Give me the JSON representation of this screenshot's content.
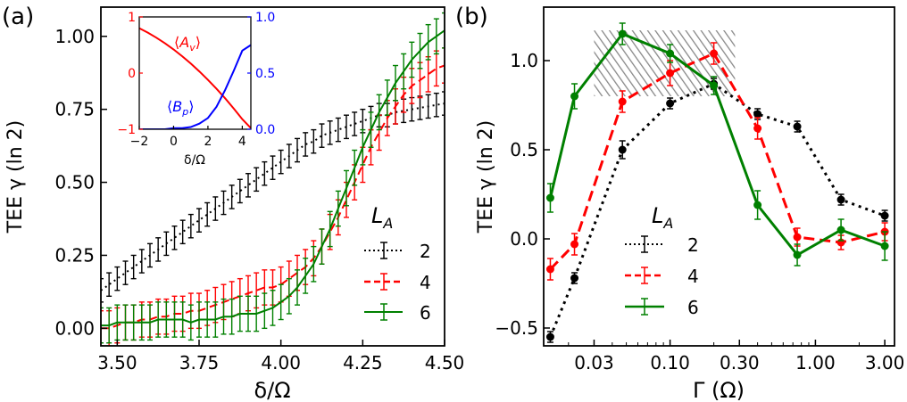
{
  "panels": [
    {
      "label": "(a)",
      "xlabel": "δ/Ω",
      "ylabel": "TEE γ (ln 2)",
      "legend_title": "L_A"
    },
    {
      "label": "(b)",
      "xlabel": "Γ (Ω)",
      "ylabel": "TEE γ (ln 2)",
      "legend_title": "L_A"
    }
  ],
  "colors": {
    "L2": "#000000",
    "L4": "#ff0000",
    "L6": "#008000",
    "inset_A": "#ff0000",
    "inset_B": "#0000ff"
  },
  "chart_data": [
    {
      "type": "line",
      "panel": "(a)",
      "xlabel": "δ/Ω",
      "ylabel": "TEE γ (ln 2)",
      "xlim": [
        3.45,
        4.5
      ],
      "ylim": [
        -0.06,
        1.1
      ],
      "xticks": [
        "3.50",
        "3.75",
        "4.00",
        "4.25",
        "4.50"
      ],
      "yticks": [
        "0.00",
        "0.25",
        "0.50",
        "0.75",
        "1.00"
      ],
      "legend_title": "L_A",
      "legend_position": "center-right",
      "series": [
        {
          "name": "2",
          "style": "dotted",
          "color": "#000000",
          "x": [
            3.45,
            3.475,
            3.5,
            3.525,
            3.55,
            3.575,
            3.6,
            3.625,
            3.65,
            3.675,
            3.7,
            3.725,
            3.75,
            3.775,
            3.8,
            3.825,
            3.85,
            3.875,
            3.9,
            3.925,
            3.95,
            3.975,
            4.0,
            4.025,
            4.05,
            4.075,
            4.1,
            4.125,
            4.15,
            4.175,
            4.2,
            4.225,
            4.25,
            4.275,
            4.3,
            4.325,
            4.35,
            4.375,
            4.4,
            4.425,
            4.45,
            4.475,
            4.5
          ],
          "y": [
            0.13,
            0.15,
            0.17,
            0.19,
            0.21,
            0.23,
            0.25,
            0.27,
            0.29,
            0.31,
            0.33,
            0.35,
            0.37,
            0.39,
            0.41,
            0.43,
            0.45,
            0.47,
            0.49,
            0.51,
            0.53,
            0.55,
            0.57,
            0.59,
            0.61,
            0.63,
            0.64,
            0.66,
            0.67,
            0.68,
            0.69,
            0.7,
            0.71,
            0.72,
            0.73,
            0.73,
            0.74,
            0.745,
            0.75,
            0.755,
            0.76,
            0.765,
            0.77
          ],
          "error": 0.04
        },
        {
          "name": "4",
          "style": "dashed",
          "color": "#ff0000",
          "x": [
            3.45,
            3.475,
            3.5,
            3.525,
            3.55,
            3.575,
            3.6,
            3.625,
            3.65,
            3.675,
            3.7,
            3.725,
            3.75,
            3.775,
            3.8,
            3.825,
            3.85,
            3.875,
            3.9,
            3.925,
            3.95,
            3.975,
            4.0,
            4.025,
            4.05,
            4.075,
            4.1,
            4.125,
            4.15,
            4.175,
            4.2,
            4.225,
            4.25,
            4.275,
            4.3,
            4.325,
            4.35,
            4.375,
            4.4,
            4.425,
            4.45,
            4.475,
            4.5
          ],
          "y": [
            0.0,
            0.0,
            0.01,
            0.02,
            0.02,
            0.03,
            0.03,
            0.04,
            0.04,
            0.05,
            0.05,
            0.06,
            0.06,
            0.07,
            0.08,
            0.09,
            0.1,
            0.11,
            0.12,
            0.13,
            0.14,
            0.14,
            0.15,
            0.17,
            0.19,
            0.21,
            0.24,
            0.28,
            0.33,
            0.38,
            0.44,
            0.5,
            0.56,
            0.62,
            0.67,
            0.72,
            0.76,
            0.8,
            0.83,
            0.85,
            0.87,
            0.89,
            0.9
          ],
          "error": 0.06
        },
        {
          "name": "6",
          "style": "solid",
          "color": "#008000",
          "x": [
            3.45,
            3.475,
            3.5,
            3.525,
            3.55,
            3.575,
            3.6,
            3.625,
            3.65,
            3.675,
            3.7,
            3.725,
            3.75,
            3.775,
            3.8,
            3.825,
            3.85,
            3.875,
            3.9,
            3.925,
            3.95,
            3.975,
            4.0,
            4.025,
            4.05,
            4.075,
            4.1,
            4.125,
            4.15,
            4.175,
            4.2,
            4.225,
            4.25,
            4.275,
            4.3,
            4.325,
            4.35,
            4.375,
            4.4,
            4.425,
            4.45,
            4.475,
            4.5
          ],
          "y": [
            0.01,
            0.01,
            0.02,
            0.02,
            0.02,
            0.02,
            0.02,
            0.03,
            0.03,
            0.03,
            0.03,
            0.02,
            0.03,
            0.03,
            0.03,
            0.04,
            0.04,
            0.05,
            0.05,
            0.05,
            0.06,
            0.07,
            0.09,
            0.11,
            0.14,
            0.18,
            0.22,
            0.28,
            0.34,
            0.41,
            0.48,
            0.55,
            0.62,
            0.68,
            0.74,
            0.79,
            0.84,
            0.88,
            0.92,
            0.95,
            0.98,
            1.0,
            1.02
          ],
          "error": 0.06
        }
      ]
    },
    {
      "type": "line",
      "panel": "(a) inset",
      "xlabel": "δ/Ω",
      "left_ylabel": "⟨A_v⟩",
      "right_ylabel": "⟨B_p⟩",
      "xlim": [
        -2,
        4.5
      ],
      "ylim_left": [
        -1,
        1
      ],
      "ylim_right": [
        0,
        1
      ],
      "xticks": [
        "−2",
        "0",
        "2",
        "4"
      ],
      "yticks_left": [
        "−1",
        "0",
        "1"
      ],
      "yticks_right": [
        "0.0",
        "0.5",
        "1.0"
      ],
      "series": [
        {
          "name": "⟨A_v⟩",
          "axis": "left",
          "color": "#ff0000",
          "x": [
            -2,
            -1.5,
            -1,
            -0.5,
            0,
            0.5,
            1,
            1.5,
            2,
            2.5,
            3,
            3.5,
            4,
            4.5
          ],
          "y": [
            0.8,
            0.72,
            0.63,
            0.53,
            0.42,
            0.3,
            0.17,
            0.03,
            -0.12,
            -0.28,
            -0.45,
            -0.63,
            -0.82,
            -0.98
          ]
        },
        {
          "name": "⟨B_p⟩",
          "axis": "right",
          "color": "#0000ff",
          "x": [
            -2,
            -1.5,
            -1,
            -0.5,
            0,
            0.5,
            1,
            1.5,
            2,
            2.5,
            3,
            3.5,
            4,
            4.5
          ],
          "y": [
            0.0,
            0.0,
            0.0,
            0.0,
            0.01,
            0.01,
            0.02,
            0.05,
            0.1,
            0.2,
            0.35,
            0.52,
            0.7,
            0.75
          ]
        }
      ]
    },
    {
      "type": "line",
      "panel": "(b)",
      "xlabel": "Γ (Ω)",
      "ylabel": "TEE γ (ln 2)",
      "x_scale": "log",
      "xlim": [
        0.0135,
        3.5
      ],
      "ylim": [
        -0.6,
        1.3
      ],
      "xticks": [
        "0.03",
        "0.10",
        "0.30",
        "1.00",
        "3.00"
      ],
      "yticks": [
        "−0.5",
        "0.0",
        "0.5",
        "1.0"
      ],
      "legend_title": "L_A",
      "legend_position": "lower-left",
      "shaded_region": {
        "x": [
          0.03,
          0.28
        ],
        "y": [
          0.8,
          1.17
        ],
        "pattern": "hatched"
      },
      "series": [
        {
          "name": "2",
          "style": "dotted",
          "color": "#000000",
          "x": [
            0.015,
            0.022,
            0.047,
            0.1,
            0.2,
            0.4,
            0.75,
            1.5,
            3.0
          ],
          "y": [
            -0.55,
            -0.22,
            0.5,
            0.76,
            0.87,
            0.7,
            0.63,
            0.22,
            0.13
          ],
          "error": [
            0.03,
            0.03,
            0.05,
            0.03,
            0.03,
            0.03,
            0.03,
            0.03,
            0.03
          ]
        },
        {
          "name": "4",
          "style": "dashed",
          "color": "#ff0000",
          "x": [
            0.015,
            0.022,
            0.047,
            0.1,
            0.2,
            0.4,
            0.75,
            1.5,
            3.0
          ],
          "y": [
            -0.17,
            -0.03,
            0.77,
            0.93,
            1.04,
            0.62,
            0.01,
            -0.02,
            0.04
          ],
          "error": [
            0.06,
            0.06,
            0.06,
            0.07,
            0.06,
            0.06,
            0.05,
            0.04,
            0.05
          ]
        },
        {
          "name": "6",
          "style": "solid",
          "color": "#008000",
          "x": [
            0.015,
            0.022,
            0.047,
            0.1,
            0.2,
            0.4,
            0.75,
            1.5,
            3.0
          ],
          "y": [
            0.23,
            0.8,
            1.15,
            1.04,
            0.86,
            0.19,
            -0.09,
            0.05,
            -0.04
          ],
          "error": [
            0.08,
            0.07,
            0.06,
            0.05,
            0.05,
            0.08,
            0.06,
            0.06,
            0.08
          ]
        }
      ]
    }
  ]
}
